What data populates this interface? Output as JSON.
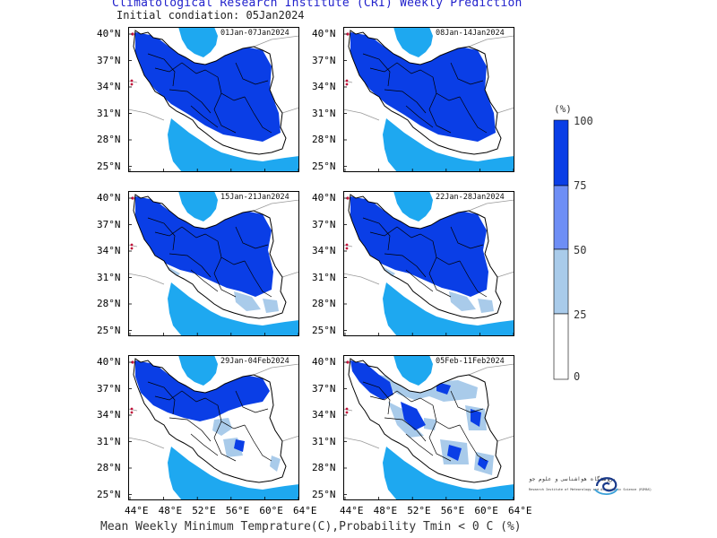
{
  "header": {
    "title": "Climatological Research Institute (CRI) Weekly Prediction",
    "subtitle": "Initial condiation: 05Jan2024"
  },
  "footer": {
    "caption": "Mean Weekly Minimum Temprature(C),Probability Tmin < 0 C (%)"
  },
  "axes": {
    "lat_labels": [
      "40°N",
      "37°N",
      "34°N",
      "31°N",
      "28°N",
      "25°N"
    ],
    "lon_labels": [
      "44°E",
      "48°E",
      "52°E",
      "56°E",
      "60°E",
      "64°E"
    ]
  },
  "panels": [
    {
      "label": "01Jan-07Jan2024",
      "coverage": "very-high"
    },
    {
      "label": "08Jan-14Jan2024",
      "coverage": "very-high"
    },
    {
      "label": "15Jan-21Jan2024",
      "coverage": "high"
    },
    {
      "label": "22Jan-28Jan2024",
      "coverage": "high"
    },
    {
      "label": "29Jan-04Feb2024",
      "coverage": "medium"
    },
    {
      "label": "05Feb-11Feb2024",
      "coverage": "low"
    }
  ],
  "legend": {
    "unit": "(%)",
    "values": [
      "100",
      "75",
      "50",
      "25",
      "0"
    ],
    "colors": [
      "#0a3ee6",
      "#6e8ef5",
      "#a9cbea",
      "#ffffff"
    ]
  },
  "colors": {
    "sea": "#1ea8f0",
    "border": "#000000",
    "title": "#2222cc"
  },
  "logo": {
    "name_fa": "پژوهشگاه هواشناسی و علوم جو",
    "name_en": "Research Institute of Meteorology and Atmospheric Science (RIMAS)"
  }
}
